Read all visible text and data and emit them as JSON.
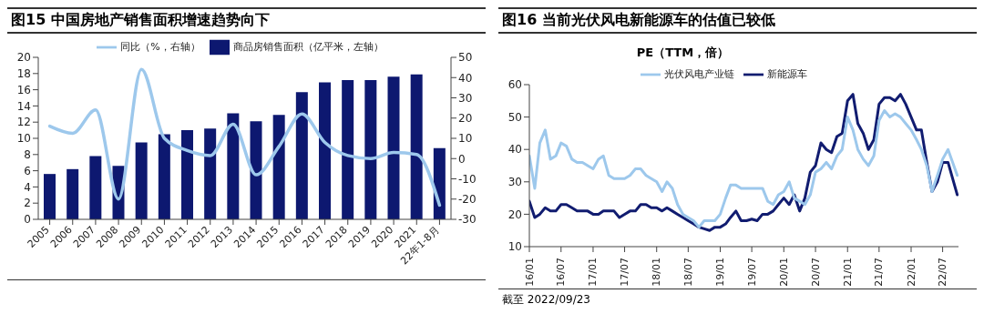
{
  "chart_data": [
    {
      "type": "bar",
      "title": "图15 中国房地产销售面积增速趋势向下",
      "categories": [
        "2005",
        "2006",
        "2007",
        "2008",
        "2009",
        "2010",
        "2011",
        "2012",
        "2013",
        "2014",
        "2015",
        "2016",
        "2017",
        "2018",
        "2019",
        "2020",
        "2021",
        "22年1-8月"
      ],
      "series": [
        {
          "name": "商品房销售面积（亿平米，左轴）",
          "color": "#0d1870",
          "values": [
            5.6,
            6.2,
            7.8,
            6.6,
            9.5,
            10.5,
            11.0,
            11.2,
            13.1,
            12.1,
            12.9,
            15.7,
            16.9,
            17.2,
            17.2,
            17.6,
            17.9,
            8.8
          ]
        },
        {
          "name": "同比（%，右轴）",
          "type": "line",
          "axis": "y2",
          "color": "#9dc8ec",
          "values": [
            16,
            12.5,
            24,
            -20,
            44,
            10,
            4,
            1.5,
            17,
            -8,
            6,
            22,
            8,
            1.5,
            0,
            3,
            2,
            -23
          ]
        }
      ],
      "ylim": [
        0,
        20
      ],
      "yticks": [
        0,
        2,
        4,
        6,
        8,
        10,
        12,
        14,
        16,
        18,
        20
      ],
      "y2lim": [
        -30,
        50
      ],
      "y2ticks": [
        -30,
        -20,
        -10,
        0,
        10,
        20,
        30,
        40,
        50
      ],
      "grid": false,
      "legend": "top",
      "marker": "none"
    },
    {
      "type": "line",
      "title": "图16 当前光伏风电新能源车的估值已较低",
      "subtitle": "PE（TTM，倍）",
      "x": [
        "2016-01",
        "2016-02",
        "2016-03",
        "2016-04",
        "2016-05",
        "2016-06",
        "2016-07",
        "2016-08",
        "2016-09",
        "2016-10",
        "2016-11",
        "2016-12",
        "2017-01",
        "2017-02",
        "2017-03",
        "2017-04",
        "2017-05",
        "2017-06",
        "2017-07",
        "2017-08",
        "2017-09",
        "2017-10",
        "2017-11",
        "2017-12",
        "2018-01",
        "2018-02",
        "2018-03",
        "2018-04",
        "2018-05",
        "2018-06",
        "2018-07",
        "2018-08",
        "2018-09",
        "2018-10",
        "2018-11",
        "2018-12",
        "2019-01",
        "2019-02",
        "2019-03",
        "2019-04",
        "2019-05",
        "2019-06",
        "2019-07",
        "2019-08",
        "2019-09",
        "2019-10",
        "2019-11",
        "2019-12",
        "2020-01",
        "2020-02",
        "2020-03",
        "2020-04",
        "2020-05",
        "2020-06",
        "2020-07",
        "2020-08",
        "2020-09",
        "2020-10",
        "2020-11",
        "2020-12",
        "2021-01",
        "2021-02",
        "2021-03",
        "2021-04",
        "2021-05",
        "2021-06",
        "2021-07",
        "2021-08",
        "2021-09",
        "2021-10",
        "2021-11",
        "2021-12",
        "2022-01",
        "2022-02",
        "2022-03",
        "2022-04",
        "2022-05",
        "2022-06",
        "2022-07",
        "2022-08",
        "2022-09-23"
      ],
      "series": [
        {
          "name": "新能源车",
          "color": "#111c70",
          "values": [
            24,
            19,
            20,
            22,
            21,
            21,
            23,
            23,
            22,
            21,
            21,
            21,
            20,
            20,
            21,
            21,
            21,
            19,
            20,
            21,
            21,
            23,
            23,
            22,
            22,
            21,
            22,
            21,
            20,
            19,
            18,
            17,
            16,
            15.5,
            15,
            16,
            16,
            17,
            19,
            21,
            18,
            18,
            18.5,
            18,
            20,
            20,
            21,
            23,
            25,
            23,
            26,
            21,
            25,
            33,
            35,
            42,
            40,
            39,
            44,
            45,
            55,
            57,
            48,
            45,
            40,
            43,
            54,
            56,
            56,
            55,
            57,
            54,
            50,
            46,
            46,
            36,
            27,
            30,
            36,
            36,
            26
          ]
        },
        {
          "name": "光伏风电产业链",
          "color": "#9dc8ec",
          "values": [
            38,
            28,
            42,
            46,
            37,
            38,
            42,
            41,
            37,
            36,
            36,
            35,
            34,
            37,
            38,
            32,
            31,
            31,
            31,
            32,
            34,
            34,
            32,
            31,
            30,
            27,
            30,
            28,
            23,
            20,
            19,
            18,
            16,
            18,
            18,
            18,
            20,
            25,
            29,
            29,
            28,
            28,
            28,
            28,
            28,
            24,
            23,
            26,
            27,
            30,
            25,
            24,
            23,
            26,
            33,
            34,
            36,
            34,
            38,
            40,
            50,
            46,
            40,
            37,
            35,
            38,
            49,
            52,
            50,
            51,
            50,
            48,
            46,
            43,
            40,
            35,
            27,
            32,
            37,
            40,
            32
          ]
        }
      ],
      "xlim": [
        "2016-01",
        "2022-09-30"
      ],
      "xticks": [
        {
          "value": "2016-01",
          "label": "16/01"
        },
        {
          "value": "2016-07",
          "label": "16/07"
        },
        {
          "value": "2017-01",
          "label": "17/01"
        },
        {
          "value": "2017-07",
          "label": "17/07"
        },
        {
          "value": "2018-01",
          "label": "18/01"
        },
        {
          "value": "2018-07",
          "label": "18/07"
        },
        {
          "value": "2019-01",
          "label": "19/01"
        },
        {
          "value": "2019-07",
          "label": "19/07"
        },
        {
          "value": "2020-01",
          "label": "20/01"
        },
        {
          "value": "2020-07",
          "label": "20/07"
        },
        {
          "value": "2021-01",
          "label": "21/01"
        },
        {
          "value": "2021-07",
          "label": "21/07"
        },
        {
          "value": "2022-01",
          "label": "22/01"
        },
        {
          "value": "2022-07",
          "label": "22/07"
        }
      ],
      "ylim": [
        10,
        60
      ],
      "yticks": [
        10,
        20,
        30,
        40,
        50,
        60
      ],
      "grid": false,
      "legend": "top",
      "marker": "none",
      "annotations": [
        "截至 2022/09/23"
      ]
    }
  ]
}
